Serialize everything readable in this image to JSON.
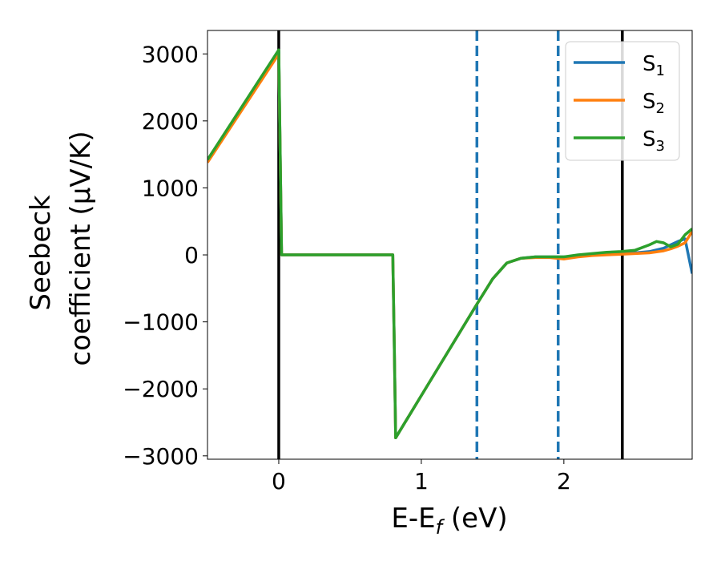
{
  "chart_data": {
    "type": "line",
    "title": "",
    "xlabel": "E-E",
    "xlabel_sub": "f",
    "xlabel_unit": " (eV)",
    "ylabel_line1": "Seebeck",
    "ylabel_line2": "coefficient  (μV/K)",
    "xlim": [
      -0.5,
      2.9
    ],
    "ylim": [
      -3050,
      3350
    ],
    "xticks": [
      0,
      1,
      2
    ],
    "xtick_labels": [
      "0",
      "1",
      "2"
    ],
    "yticks": [
      3000,
      2000,
      1000,
      0,
      -1000,
      -2000,
      -3000
    ],
    "ytick_labels": [
      "3000",
      "2000",
      "1000",
      "0",
      "−1000",
      "−2000",
      "−3000"
    ],
    "grid": false,
    "legend_position": "top-right",
    "vlines": [
      {
        "x": 0.0,
        "style": "solid",
        "color": "#000000"
      },
      {
        "x": 2.41,
        "style": "solid",
        "color": "#000000"
      },
      {
        "x": 1.39,
        "style": "dashed",
        "color": "#1f77b4"
      },
      {
        "x": 1.96,
        "style": "dashed",
        "color": "#1f77b4"
      }
    ],
    "series": [
      {
        "name": "S",
        "sub": "1",
        "color": "#1f77b4",
        "x": [
          -0.5,
          0.0,
          0.02,
          0.8,
          0.81,
          0.82,
          1.0,
          1.2,
          1.4,
          1.5,
          1.6,
          1.7,
          1.8,
          1.9,
          2.0,
          2.1,
          2.2,
          2.3,
          2.4,
          2.5,
          2.6,
          2.7,
          2.75,
          2.8,
          2.85,
          2.9
        ],
        "y": [
          1400,
          3030,
          0,
          0,
          -1300,
          -2730,
          -2100,
          -1400,
          -700,
          -360,
          -120,
          -50,
          -30,
          -30,
          -30,
          -20,
          0,
          10,
          20,
          30,
          50,
          100,
          150,
          200,
          240,
          -280
        ]
      },
      {
        "name": "S",
        "sub": "2",
        "color": "#ff7f0e",
        "x": [
          -0.5,
          0.0,
          0.02,
          0.8,
          0.81,
          0.82,
          1.0,
          1.2,
          1.4,
          1.5,
          1.6,
          1.7,
          1.8,
          1.9,
          2.0,
          2.1,
          2.2,
          2.3,
          2.4,
          2.5,
          2.6,
          2.7,
          2.75,
          2.8,
          2.85,
          2.9
        ],
        "y": [
          1380,
          3000,
          0,
          0,
          -1300,
          -2730,
          -2100,
          -1400,
          -700,
          -360,
          -120,
          -50,
          -40,
          -40,
          -60,
          -30,
          -10,
          0,
          10,
          20,
          30,
          60,
          90,
          130,
          180,
          350
        ]
      },
      {
        "name": "S",
        "sub": "3",
        "color": "#2ca02c",
        "x": [
          -0.5,
          0.0,
          0.02,
          0.8,
          0.81,
          0.82,
          1.0,
          1.2,
          1.4,
          1.5,
          1.6,
          1.7,
          1.8,
          1.9,
          2.0,
          2.1,
          2.2,
          2.3,
          2.4,
          2.5,
          2.6,
          2.65,
          2.7,
          2.75,
          2.8,
          2.85,
          2.9
        ],
        "y": [
          1420,
          3060,
          0,
          0,
          -1300,
          -2730,
          -2100,
          -1400,
          -700,
          -360,
          -120,
          -50,
          -30,
          -30,
          -30,
          0,
          20,
          40,
          50,
          70,
          150,
          200,
          180,
          120,
          160,
          300,
          390
        ]
      }
    ]
  }
}
